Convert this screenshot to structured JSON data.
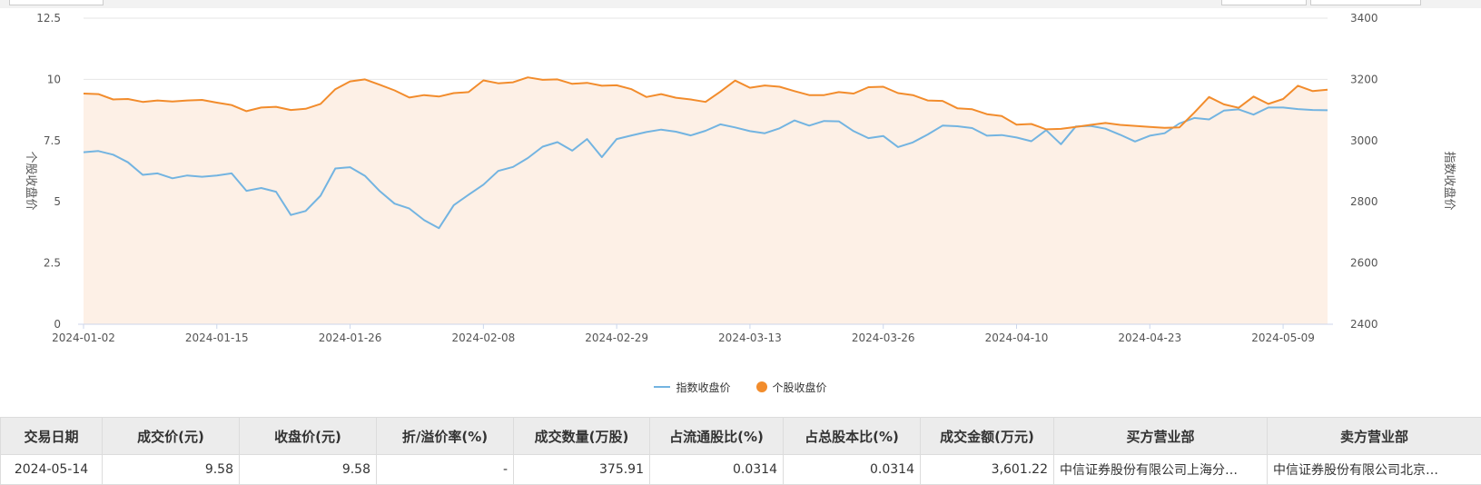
{
  "chart_data": {
    "type": "line",
    "x": [
      "2024-01-02",
      "2024-01-03",
      "2024-01-04",
      "2024-01-05",
      "2024-01-08",
      "2024-01-09",
      "2024-01-10",
      "2024-01-11",
      "2024-01-12",
      "2024-01-15",
      "2024-01-16",
      "2024-01-17",
      "2024-01-18",
      "2024-01-19",
      "2024-01-22",
      "2024-01-23",
      "2024-01-24",
      "2024-01-25",
      "2024-01-26",
      "2024-01-29",
      "2024-01-30",
      "2024-01-31",
      "2024-02-01",
      "2024-02-02",
      "2024-02-05",
      "2024-02-06",
      "2024-02-07",
      "2024-02-08",
      "2024-02-19",
      "2024-02-20",
      "2024-02-21",
      "2024-02-22",
      "2024-02-23",
      "2024-02-26",
      "2024-02-27",
      "2024-02-28",
      "2024-02-29",
      "2024-03-01",
      "2024-03-04",
      "2024-03-05",
      "2024-03-06",
      "2024-03-07",
      "2024-03-08",
      "2024-03-11",
      "2024-03-12",
      "2024-03-13",
      "2024-03-14",
      "2024-03-15",
      "2024-03-18",
      "2024-03-19",
      "2024-03-20",
      "2024-03-21",
      "2024-03-22",
      "2024-03-25",
      "2024-03-26",
      "2024-03-27",
      "2024-03-28",
      "2024-03-29",
      "2024-04-01",
      "2024-04-02",
      "2024-04-03",
      "2024-04-08",
      "2024-04-09",
      "2024-04-10",
      "2024-04-11",
      "2024-04-12",
      "2024-04-15",
      "2024-04-16",
      "2024-04-17",
      "2024-04-18",
      "2024-04-19",
      "2024-04-22",
      "2024-04-23",
      "2024-04-24",
      "2024-04-25",
      "2024-04-26",
      "2024-04-29",
      "2024-04-30",
      "2024-05-06",
      "2024-05-07",
      "2024-05-08",
      "2024-05-09",
      "2024-05-10",
      "2024-05-13",
      "2024-05-14"
    ],
    "x_ticks": [
      "2024-01-02",
      "2024-01-15",
      "2024-01-26",
      "2024-02-08",
      "2024-02-29",
      "2024-03-13",
      "2024-03-26",
      "2024-04-10",
      "2024-04-23",
      "2024-05-09"
    ],
    "series": [
      {
        "name": "指数收盘价",
        "axis": "right",
        "color": "#73b4e1",
        "values": [
          2962,
          2966,
          2954,
          2929,
          2888,
          2893,
          2877,
          2886,
          2882,
          2886,
          2893,
          2836,
          2845,
          2833,
          2757,
          2770,
          2820,
          2909,
          2913,
          2885,
          2835,
          2794,
          2778,
          2740,
          2714,
          2789,
          2823,
          2856,
          2901,
          2914,
          2943,
          2980,
          2995,
          2967,
          3005,
          2946,
          3005,
          3017,
          3028,
          3036,
          3029,
          3017,
          3032,
          3053,
          3043,
          3031,
          3024,
          3040,
          3066,
          3049,
          3064,
          3063,
          3031,
          3008,
          3015,
          2979,
          2994,
          3020,
          3049,
          3047,
          3041,
          3016,
          3018,
          3010,
          2998,
          3034,
          2988,
          3046,
          3048,
          3039,
          3019,
          2997,
          3016,
          3024,
          3056,
          3074,
          3069,
          3098,
          3102,
          3085,
          3108,
          3108,
          3103,
          3100,
          3099
        ]
      },
      {
        "name": "个股收盘价",
        "axis": "left",
        "color": "#f28c2c",
        "values": [
          9.42,
          9.4,
          9.18,
          9.2,
          9.08,
          9.14,
          9.1,
          9.14,
          9.16,
          9.05,
          8.95,
          8.7,
          8.85,
          8.88,
          8.75,
          8.8,
          9.0,
          9.6,
          9.92,
          10.0,
          9.78,
          9.55,
          9.26,
          9.36,
          9.3,
          9.44,
          9.48,
          9.96,
          9.84,
          9.88,
          10.08,
          9.98,
          10.0,
          9.82,
          9.86,
          9.74,
          9.76,
          9.6,
          9.28,
          9.4,
          9.25,
          9.18,
          9.08,
          9.5,
          9.95,
          9.66,
          9.75,
          9.7,
          9.52,
          9.36,
          9.36,
          9.48,
          9.42,
          9.68,
          9.7,
          9.44,
          9.36,
          9.14,
          9.12,
          8.82,
          8.78,
          8.58,
          8.5,
          8.15,
          8.18,
          7.96,
          7.98,
          8.06,
          8.14,
          8.22,
          8.14,
          8.1,
          8.06,
          8.02,
          8.04,
          8.64,
          9.28,
          8.98,
          8.84,
          9.3,
          9.0,
          9.2,
          9.74,
          9.52,
          9.58
        ]
      }
    ],
    "y_left": {
      "label": "个股收盘价",
      "min": 0,
      "max": 12.5,
      "ticks": [
        "0",
        "2.5",
        "5",
        "7.5",
        "10",
        "12.5"
      ]
    },
    "y_right": {
      "label": "指数收盘价",
      "min": 2400,
      "max": 3400,
      "ticks": [
        "2400",
        "2600",
        "2800",
        "3000",
        "3200",
        "3400"
      ]
    },
    "grid": true,
    "legend_position": "bottom-center"
  },
  "legend": {
    "index": "指数收盘价",
    "stock": "个股收盘价"
  },
  "axis_labels": {
    "left": "个股收盘价",
    "right": "指数收盘价"
  },
  "table": {
    "headers": [
      "交易日期",
      "成交价(元)",
      "收盘价(元)",
      "折/溢价率(%)",
      "成交数量(万股)",
      "占流通股比(%)",
      "占总股本比(%)",
      "成交金额(万元)",
      "买方营业部",
      "卖方营业部"
    ],
    "rows": [
      {
        "date": "2024-05-14",
        "price": "9.58",
        "close": "9.58",
        "premium": "-",
        "volume": "375.91",
        "float_ratio": "0.0314",
        "total_ratio": "0.0314",
        "amount": "3,601.22",
        "buyer": "中信证券股份有限公司上海分…",
        "seller": "中信证券股份有限公司北京…"
      }
    ]
  }
}
